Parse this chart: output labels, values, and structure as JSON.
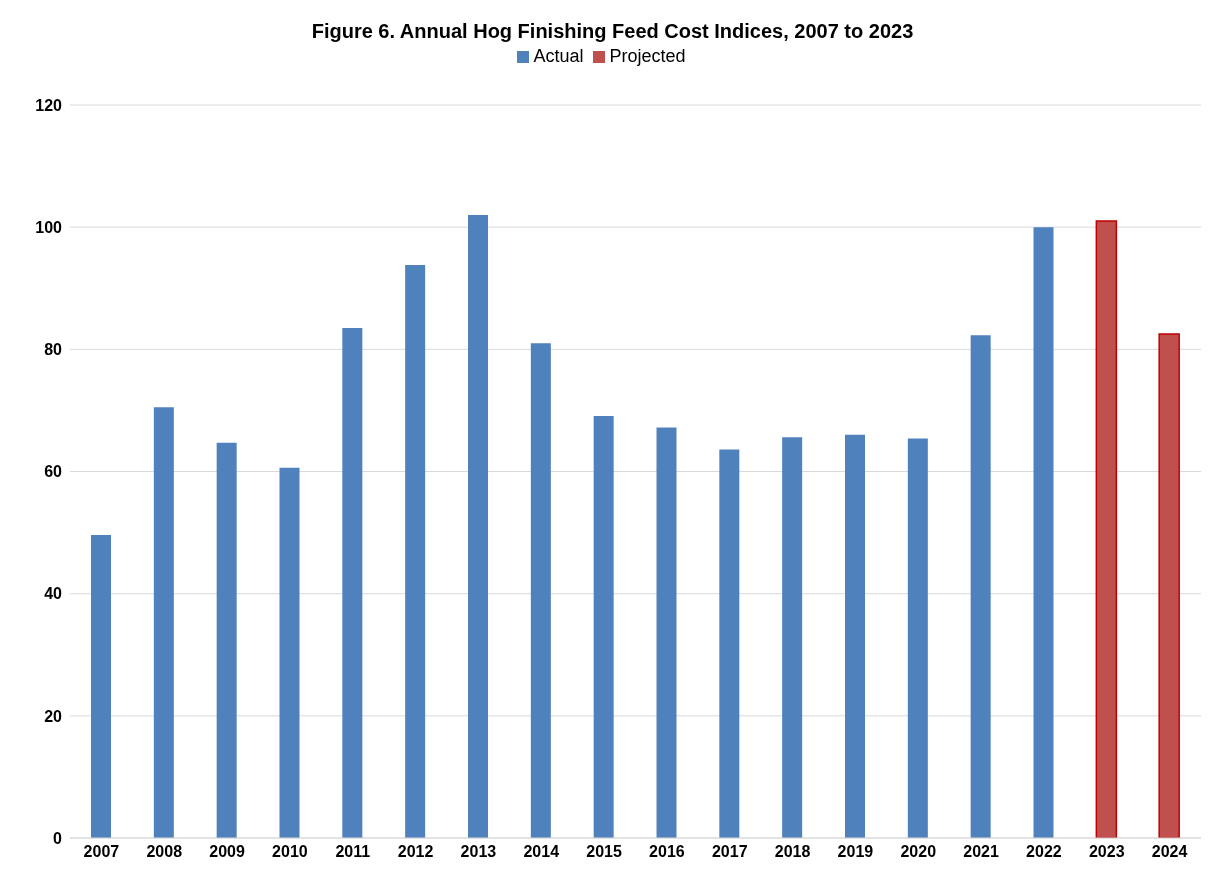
{
  "chart_data": {
    "type": "bar",
    "title": "Figure 6.  Annual Hog Finishing Feed Cost Indices, 2007 to 2023",
    "categories": [
      "2007",
      "2008",
      "2009",
      "2010",
      "2011",
      "2012",
      "2013",
      "2014",
      "2015",
      "2016",
      "2017",
      "2018",
      "2019",
      "2020",
      "2021",
      "2022",
      "2023",
      "2024"
    ],
    "series": [
      {
        "name": "Actual",
        "color": "#4f81bd",
        "values": [
          49.6,
          70.5,
          64.7,
          60.6,
          83.5,
          93.8,
          102.0,
          81.0,
          69.1,
          67.2,
          63.6,
          65.6,
          66.0,
          65.4,
          82.3,
          100,
          null,
          null
        ]
      },
      {
        "name": "Projected",
        "color": "#c0504d",
        "values": [
          null,
          null,
          null,
          null,
          null,
          null,
          null,
          null,
          null,
          null,
          null,
          null,
          null,
          null,
          null,
          null,
          101.0,
          82.5
        ]
      }
    ],
    "ylim": [
      0,
      120
    ],
    "yticks": [
      0,
      20,
      40,
      60,
      80,
      100,
      120
    ],
    "grid": "y",
    "legend": "top"
  }
}
